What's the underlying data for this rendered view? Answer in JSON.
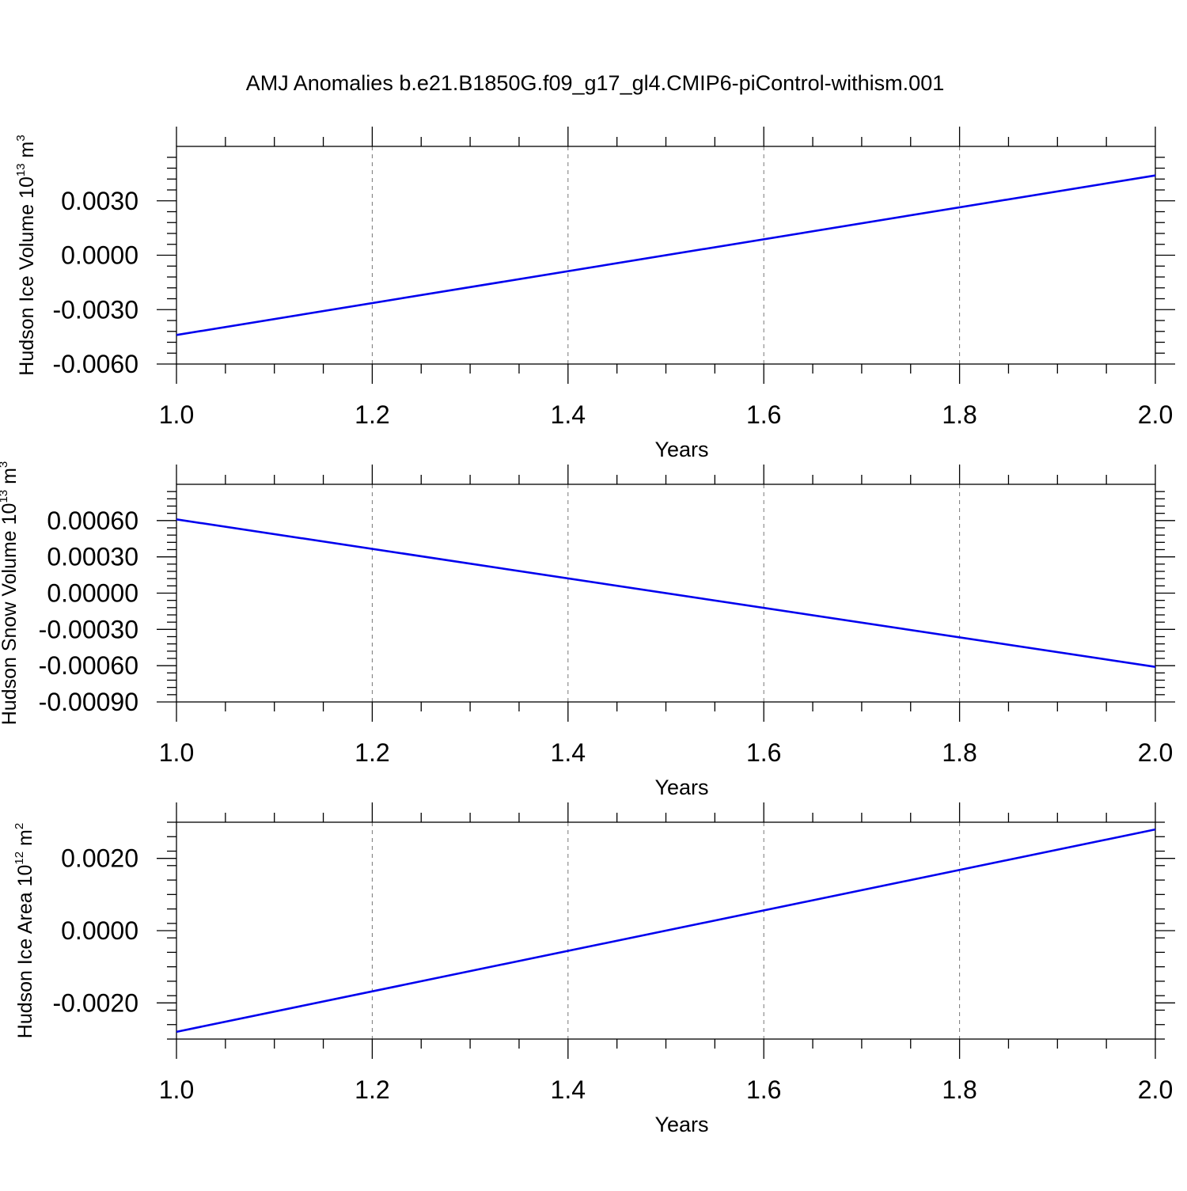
{
  "title": "AMJ Anomalies b.e21.B1850G.f09_g17_gl4.CMIP6-piControl-withism.001",
  "colors": {
    "series": "#0000ee",
    "axes": "#000000",
    "grid": "#777777"
  },
  "chart_data": [
    {
      "type": "line",
      "ylabel": {
        "prefix": "Hudson Ice Volume 10",
        "exp": "13",
        "unit": " m",
        "unit_exp": "3"
      },
      "xlabel": "Years",
      "xlim": [
        1.0,
        2.0
      ],
      "ylim": [
        -0.006,
        0.006
      ],
      "x_ticks": [
        "1.0",
        "1.2",
        "1.4",
        "1.6",
        "1.8",
        "2.0"
      ],
      "y_ticks": [
        {
          "value": -0.006,
          "label": "-0.0060"
        },
        {
          "value": -0.003,
          "label": "-0.0030"
        },
        {
          "value": 0.0,
          "label": "0.0000"
        },
        {
          "value": 0.003,
          "label": "0.0030"
        }
      ],
      "grid": "x-dashed",
      "series": [
        {
          "x": [
            1.0,
            2.0
          ],
          "y": [
            -0.0044,
            0.0044
          ]
        }
      ]
    },
    {
      "type": "line",
      "ylabel": {
        "prefix": "Hudson Snow Volume 10",
        "exp": "13",
        "unit": " m",
        "unit_exp": "3"
      },
      "xlabel": "Years",
      "xlim": [
        1.0,
        2.0
      ],
      "ylim": [
        -0.0009,
        0.0009
      ],
      "x_ticks": [
        "1.0",
        "1.2",
        "1.4",
        "1.6",
        "1.8",
        "2.0"
      ],
      "y_ticks": [
        {
          "value": -0.0009,
          "label": "-0.00090"
        },
        {
          "value": -0.0006,
          "label": "-0.00060"
        },
        {
          "value": -0.0003,
          "label": "-0.00030"
        },
        {
          "value": 0.0,
          "label": "0.00000"
        },
        {
          "value": 0.0003,
          "label": "0.00030"
        },
        {
          "value": 0.0006,
          "label": "0.00060"
        }
      ],
      "grid": "x-dashed",
      "series": [
        {
          "x": [
            1.0,
            2.0
          ],
          "y": [
            0.00061,
            -0.00061
          ]
        }
      ]
    },
    {
      "type": "line",
      "ylabel": {
        "prefix": "Hudson Ice Area 10",
        "exp": "12",
        "unit": " m",
        "unit_exp": "2"
      },
      "xlabel": "Years",
      "xlim": [
        1.0,
        2.0
      ],
      "ylim": [
        -0.003,
        0.003
      ],
      "x_ticks": [
        "1.0",
        "1.2",
        "1.4",
        "1.6",
        "1.8",
        "2.0"
      ],
      "y_ticks": [
        {
          "value": -0.002,
          "label": "-0.0020"
        },
        {
          "value": 0.0,
          "label": "0.0000"
        },
        {
          "value": 0.002,
          "label": "0.0020"
        }
      ],
      "grid": "x-dashed",
      "series": [
        {
          "x": [
            1.0,
            2.0
          ],
          "y": [
            -0.0028,
            0.0028
          ]
        }
      ]
    }
  ]
}
